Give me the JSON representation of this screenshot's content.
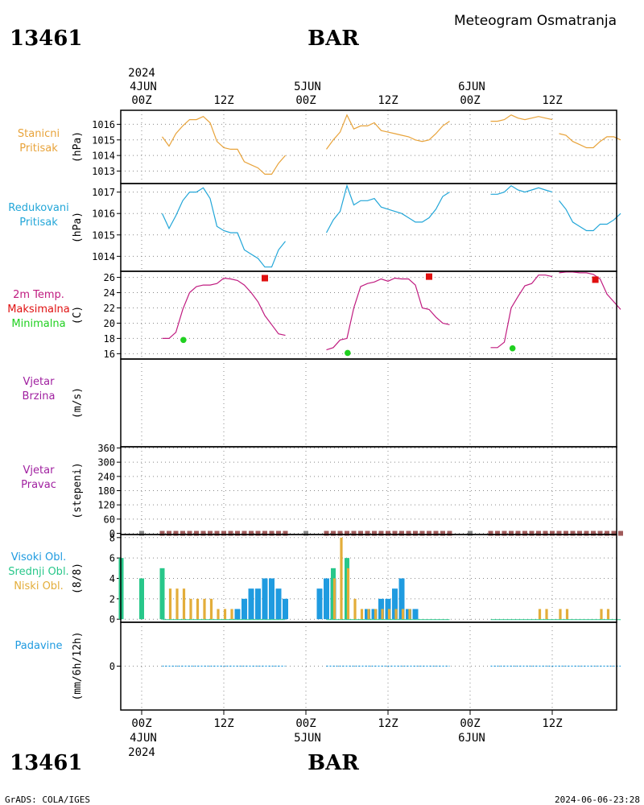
{
  "header": {
    "station_id": "13461",
    "station_name": "BAR",
    "title": "Meteogram Osmatranja",
    "footer_left": "GrADS: COLA/IGES",
    "footer_right": "2024-06-06-23:28"
  },
  "time_axis": {
    "year": "2024",
    "top_dates": [
      "4JUN",
      "5JUN",
      "6JUN"
    ],
    "bottom_dates": [
      "4JUN",
      "5JUN",
      "6JUN"
    ],
    "hour_labels": [
      "00Z",
      "12Z",
      "00Z",
      "12Z",
      "00Z",
      "12Z"
    ]
  },
  "colors": {
    "pressure_station": "#e8a33a",
    "pressure_reduced": "#22a6d8",
    "temperature": "#c01c80",
    "tmax": "#e01010",
    "tmin": "#20d020",
    "wind": "#a020a0",
    "cloud_high": "#1f9be0",
    "cloud_mid": "#28c78a",
    "cloud_low": "#e3ad3a",
    "precip": "#1f9be0",
    "wind_dir_marker": "#a05a5a"
  },
  "chart_data": [
    {
      "type": "line",
      "panel": "station_pressure",
      "labels": [
        "Stanicni",
        "Pritisak"
      ],
      "ylabel": "(hPa)",
      "ylim": [
        1012.2,
        1016.9
      ],
      "yticks": [
        1013,
        1014,
        1015,
        1016
      ],
      "segments": [
        {
          "x": [
            3,
            4,
            5,
            6,
            7,
            8,
            9,
            10,
            11,
            12,
            13,
            14,
            15,
            16,
            17,
            18,
            19,
            20,
            21
          ],
          "y": [
            1015.2,
            1014.6,
            1015.4,
            1015.9,
            1016.3,
            1016.3,
            1016.5,
            1016.1,
            1014.9,
            1014.5,
            1014.4,
            1014.4,
            1013.6,
            1013.4,
            1013.2,
            1012.8,
            1012.8,
            1013.5,
            1014.0
          ]
        },
        {
          "x": [
            27,
            28,
            29,
            30,
            31,
            32,
            33,
            34,
            35,
            36,
            37,
            38,
            39,
            40,
            41,
            42,
            43,
            44,
            45
          ],
          "y": [
            1014.4,
            1015.0,
            1015.5,
            1016.6,
            1015.7,
            1015.9,
            1015.9,
            1016.1,
            1015.6,
            1015.5,
            1015.4,
            1015.3,
            1015.2,
            1015.0,
            1014.9,
            1015.0,
            1015.4,
            1015.9,
            1016.2
          ]
        },
        {
          "x": [
            51,
            52,
            53,
            54,
            55,
            56,
            57,
            58,
            59,
            60
          ],
          "y": [
            1016.2,
            1016.2,
            1016.3,
            1016.6,
            1016.4,
            1016.3,
            1016.4,
            1016.5,
            1016.4,
            1016.3
          ]
        },
        {
          "x": [
            61,
            62,
            63,
            64,
            65,
            66,
            67,
            68,
            69,
            70
          ],
          "y": [
            1015.4,
            1015.3,
            1014.9,
            1014.7,
            1014.5,
            1014.5,
            1014.9,
            1015.2,
            1015.2,
            1015.0
          ]
        }
      ]
    },
    {
      "type": "line",
      "panel": "reduced_pressure",
      "labels": [
        "Redukovani",
        "Pritisak"
      ],
      "ylabel": "(hPa)",
      "ylim": [
        1013.3,
        1017.4
      ],
      "yticks": [
        1014,
        1015,
        1016,
        1017
      ],
      "segments": [
        {
          "x": [
            3,
            4,
            5,
            6,
            7,
            8,
            9,
            10,
            11,
            12,
            13,
            14,
            15,
            16,
            17,
            18,
            19,
            20,
            21
          ],
          "y": [
            1016.0,
            1015.3,
            1015.9,
            1016.6,
            1017.0,
            1017.0,
            1017.2,
            1016.7,
            1015.4,
            1015.2,
            1015.1,
            1015.1,
            1014.3,
            1014.1,
            1013.9,
            1013.5,
            1013.5,
            1014.3,
            1014.7
          ]
        },
        {
          "x": [
            27,
            28,
            29,
            30,
            31,
            32,
            33,
            34,
            35,
            36,
            37,
            38,
            39,
            40,
            41,
            42,
            43,
            44,
            45
          ],
          "y": [
            1015.1,
            1015.7,
            1016.1,
            1017.3,
            1016.4,
            1016.6,
            1016.6,
            1016.7,
            1016.3,
            1016.2,
            1016.1,
            1016.0,
            1015.8,
            1015.6,
            1015.6,
            1015.8,
            1016.2,
            1016.8,
            1017.0
          ]
        },
        {
          "x": [
            51,
            52,
            53,
            54,
            55,
            56,
            57,
            58,
            59,
            60
          ],
          "y": [
            1016.9,
            1016.9,
            1017.0,
            1017.3,
            1017.1,
            1017.0,
            1017.1,
            1017.2,
            1017.1,
            1017.0
          ]
        },
        {
          "x": [
            61,
            62,
            63,
            64,
            65,
            66,
            67,
            68,
            69,
            70
          ],
          "y": [
            1016.6,
            1016.2,
            1015.6,
            1015.4,
            1015.2,
            1015.2,
            1015.5,
            1015.5,
            1015.7,
            1016.0
          ]
        }
      ]
    },
    {
      "type": "line",
      "panel": "temperature",
      "labels": [
        "2m Temp.",
        "Maksimalna",
        "Minimalna"
      ],
      "ylabel": "(C)",
      "ylim": [
        15.3,
        26.8
      ],
      "yticks": [
        16,
        18,
        20,
        22,
        24,
        26
      ],
      "segments": [
        {
          "x": [
            3,
            4,
            5,
            6,
            7,
            8,
            9,
            10,
            11,
            12,
            13,
            14,
            15,
            16,
            17,
            18,
            19,
            20,
            21
          ],
          "y": [
            18.0,
            18.0,
            18.8,
            21.8,
            24.0,
            24.8,
            25.0,
            25.0,
            25.2,
            25.9,
            25.8,
            25.6,
            25.0,
            24.0,
            22.8,
            21.0,
            19.8,
            18.6,
            18.4
          ]
        },
        {
          "x": [
            27,
            28,
            29,
            30,
            31,
            32,
            33,
            34,
            35,
            36,
            37,
            38,
            39,
            40,
            41,
            42,
            43,
            44,
            45
          ],
          "y": [
            16.5,
            16.8,
            17.8,
            18.0,
            22.0,
            24.8,
            25.2,
            25.4,
            25.8,
            25.5,
            25.9,
            25.8,
            25.8,
            25.0,
            22.0,
            21.8,
            20.8,
            20.0,
            19.8
          ]
        },
        {
          "x": [
            51,
            52,
            53,
            54,
            55,
            56,
            57,
            58,
            59,
            60
          ],
          "y": [
            16.8,
            16.8,
            17.5,
            22.0,
            23.5,
            24.9,
            25.2,
            26.3,
            26.3,
            26.1
          ]
        },
        {
          "x": [
            61,
            62,
            63,
            64,
            65,
            66,
            67,
            68,
            69,
            70
          ],
          "y": [
            26.6,
            26.7,
            26.7,
            26.6,
            26.6,
            26.4,
            25.8,
            23.8,
            22.8,
            21.8
          ]
        }
      ],
      "tmax": [
        {
          "x": 18,
          "y": 25.9
        },
        {
          "x": 42,
          "y": 26.1
        },
        {
          "x": 66.3,
          "y": 25.7
        }
      ],
      "tmin": [
        {
          "x": 6.1,
          "y": 17.8
        },
        {
          "x": 30.1,
          "y": 16.1
        },
        {
          "x": 54.2,
          "y": 16.7
        }
      ]
    },
    {
      "type": "line",
      "panel": "wind_speed",
      "labels": [
        "Vjetar",
        "Brzina"
      ],
      "ylabel": "(m/s)",
      "ylim": [
        0,
        1
      ],
      "yticks": [],
      "segments": []
    },
    {
      "type": "scatter",
      "panel": "wind_direction",
      "labels": [
        "Vjetar",
        "Pravac"
      ],
      "ylabel": "(stepeni)",
      "ylim": [
        -5,
        365
      ],
      "yticks": [
        0,
        60,
        120,
        180,
        240,
        300,
        360
      ],
      "x": [
        0,
        3,
        4,
        5,
        6,
        7,
        8,
        9,
        10,
        11,
        12,
        13,
        14,
        15,
        16,
        17,
        18,
        19,
        20,
        21,
        24,
        27,
        28,
        29,
        30,
        31,
        32,
        33,
        34,
        35,
        36,
        37,
        38,
        39,
        40,
        41,
        42,
        43,
        44,
        45,
        48,
        51,
        52,
        53,
        54,
        55,
        56,
        57,
        58,
        59,
        60,
        61,
        62,
        63,
        64,
        65,
        66,
        67,
        68,
        69,
        70
      ],
      "y": [
        0,
        0,
        0,
        0,
        0,
        0,
        0,
        0,
        0,
        0,
        0,
        0,
        0,
        0,
        0,
        0,
        0,
        0,
        0,
        0,
        0,
        0,
        0,
        0,
        0,
        0,
        0,
        0,
        0,
        0,
        0,
        0,
        0,
        0,
        0,
        0,
        0,
        0,
        0,
        0,
        0,
        0,
        0,
        0,
        0,
        0,
        0,
        0,
        0,
        0,
        0,
        0,
        0,
        0,
        0,
        0,
        0,
        0,
        0,
        0,
        0
      ]
    },
    {
      "type": "bar",
      "panel": "cloud_cover",
      "labels": [
        "Visoki Obl.",
        "Srednji Obl.",
        "Niski Obl."
      ],
      "ylabel": "(8/8)",
      "ylim": [
        -0.3,
        8.3
      ],
      "yticks": [
        0,
        2,
        4,
        6,
        8
      ],
      "series": [
        {
          "name": "Visoki Obl.",
          "color_key": "cloud_high",
          "x": [
            14,
            15,
            16,
            17,
            18,
            19,
            20,
            21,
            26,
            27,
            28,
            33,
            34,
            35,
            36,
            37,
            38,
            39,
            40
          ],
          "values": [
            1,
            2,
            3,
            3,
            4,
            4,
            3,
            2,
            3,
            4,
            4,
            1,
            1,
            2,
            2,
            3,
            4,
            1,
            1
          ]
        },
        {
          "name": "Srednji Obl.",
          "color_key": "cloud_mid",
          "x": [
            -3,
            0,
            3,
            28,
            30
          ],
          "values": [
            6,
            4,
            5,
            5,
            6
          ]
        },
        {
          "name": "Niski Obl.",
          "color_key": "cloud_low",
          "x": [
            4,
            5,
            6,
            7,
            8,
            9,
            10,
            11,
            12,
            13,
            28,
            29,
            30,
            31,
            32,
            33,
            34,
            35,
            36,
            37,
            38,
            39,
            58,
            59,
            61,
            62,
            67,
            68
          ],
          "values": [
            3,
            3,
            3,
            2,
            2,
            2,
            2,
            1,
            1,
            1,
            4,
            8,
            5,
            2,
            1,
            1,
            1,
            1,
            1,
            1,
            1,
            1,
            1,
            1,
            1,
            1,
            1,
            1
          ]
        }
      ]
    },
    {
      "type": "line",
      "panel": "precipitation",
      "labels": [
        "Padavine"
      ],
      "ylabel": "(mm/6h/12h)",
      "ylim": [
        -0.5,
        0.5
      ],
      "yticks": [
        0
      ],
      "segments": [
        {
          "x": [
            3,
            21
          ],
          "y": [
            0,
            0
          ]
        },
        {
          "x": [
            27,
            45
          ],
          "y": [
            0,
            0
          ]
        },
        {
          "x": [
            51,
            70
          ],
          "y": [
            0,
            0
          ]
        }
      ]
    }
  ]
}
